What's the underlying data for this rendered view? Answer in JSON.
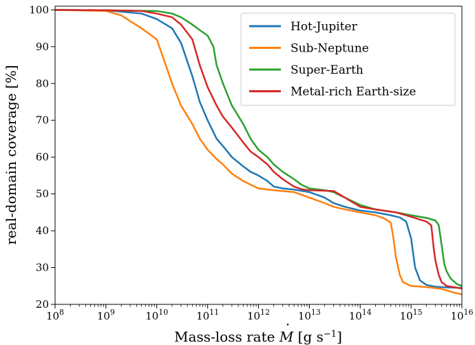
{
  "chart_data": {
    "type": "line",
    "xscale": "log",
    "xlim": [
      100000000.0,
      1e+16
    ],
    "ylim": [
      20,
      101
    ],
    "xlabel": "Mass-loss rate",
    "xlabel_symbol": "M",
    "xlabel_units_pre": "[g s",
    "xlabel_units_sup": "−1",
    "xlabel_units_post": "]",
    "ylabel": "real-domain coverage [%]",
    "x_ticks": [
      {
        "base": "10",
        "exp": "8",
        "value": 100000000.0
      },
      {
        "base": "10",
        "exp": "9",
        "value": 1000000000.0
      },
      {
        "base": "10",
        "exp": "10",
        "value": 10000000000.0
      },
      {
        "base": "10",
        "exp": "11",
        "value": 100000000000.0
      },
      {
        "base": "10",
        "exp": "12",
        "value": 1000000000000.0
      },
      {
        "base": "10",
        "exp": "13",
        "value": 10000000000000.0
      },
      {
        "base": "10",
        "exp": "14",
        "value": 100000000000000.0
      },
      {
        "base": "10",
        "exp": "15",
        "value": 1000000000000000.0
      },
      {
        "base": "10",
        "exp": "16",
        "value": 1e+16
      }
    ],
    "y_ticks": [
      "20",
      "30",
      "40",
      "50",
      "60",
      "70",
      "80",
      "90",
      "100"
    ],
    "grid": false,
    "legend_position": "top-right",
    "series": [
      {
        "name": "Hot-Jupiter",
        "color": "#1f77b4",
        "points": [
          [
            100000000.0,
            100
          ],
          [
            1000000000.0,
            99.9
          ],
          [
            5000000000.0,
            99
          ],
          [
            10000000000.0,
            97.5
          ],
          [
            20000000000.0,
            95
          ],
          [
            30000000000.0,
            91
          ],
          [
            50000000000.0,
            82
          ],
          [
            70000000000.0,
            75
          ],
          [
            100000000000.0,
            70
          ],
          [
            150000000000.0,
            65
          ],
          [
            200000000000.0,
            63
          ],
          [
            300000000000.0,
            60
          ],
          [
            500000000000.0,
            57.5
          ],
          [
            700000000000.0,
            56
          ],
          [
            1000000000000.0,
            55
          ],
          [
            1500000000000.0,
            53.5
          ],
          [
            2000000000000.0,
            52
          ],
          [
            3000000000000.0,
            51.5
          ],
          [
            5000000000000.0,
            51.2
          ],
          [
            10000000000000.0,
            50.5
          ],
          [
            20000000000000.0,
            49
          ],
          [
            30000000000000.0,
            47.5
          ],
          [
            50000000000000.0,
            46.5
          ],
          [
            70000000000000.0,
            46
          ],
          [
            100000000000000.0,
            45.5
          ],
          [
            200000000000000.0,
            45
          ],
          [
            400000000000000.0,
            44.2
          ],
          [
            600000000000000.0,
            43.6
          ],
          [
            800000000000000.0,
            42.5
          ],
          [
            1000000000000000.0,
            38
          ],
          [
            1200000000000000.0,
            30
          ],
          [
            1500000000000000.0,
            26.5
          ],
          [
            2000000000000000.0,
            25.3
          ],
          [
            3000000000000000.0,
            24.8
          ],
          [
            5000000000000000.0,
            24.6
          ],
          [
            1e+16,
            24.5
          ]
        ]
      },
      {
        "name": "Sub-Neptune",
        "color": "#ff7f0e",
        "points": [
          [
            100000000.0,
            100
          ],
          [
            1000000000.0,
            99.7
          ],
          [
            2000000000.0,
            98.5
          ],
          [
            5000000000.0,
            95
          ],
          [
            10000000000.0,
            92
          ],
          [
            15000000000.0,
            85
          ],
          [
            20000000000.0,
            80
          ],
          [
            30000000000.0,
            74
          ],
          [
            50000000000.0,
            69
          ],
          [
            70000000000.0,
            65
          ],
          [
            100000000000.0,
            62
          ],
          [
            150000000000.0,
            59.5
          ],
          [
            200000000000.0,
            58
          ],
          [
            300000000000.0,
            55.5
          ],
          [
            500000000000.0,
            53.5
          ],
          [
            700000000000.0,
            52.5
          ],
          [
            1000000000000.0,
            51.5
          ],
          [
            2000000000000.0,
            51
          ],
          [
            5000000000000.0,
            50.5
          ],
          [
            10000000000000.0,
            49
          ],
          [
            20000000000000.0,
            47.5
          ],
          [
            30000000000000.0,
            46.5
          ],
          [
            50000000000000.0,
            45.8
          ],
          [
            100000000000000.0,
            45
          ],
          [
            200000000000000.0,
            44.2
          ],
          [
            300000000000000.0,
            43.3
          ],
          [
            400000000000000.0,
            42.2
          ],
          [
            450000000000000.0,
            38
          ],
          [
            500000000000000.0,
            33
          ],
          [
            600000000000000.0,
            28
          ],
          [
            700000000000000.0,
            26
          ],
          [
            1000000000000000.0,
            25
          ],
          [
            2000000000000000.0,
            24.7
          ],
          [
            4000000000000000.0,
            24.2
          ],
          [
            7000000000000000.0,
            23.2
          ],
          [
            1e+16,
            22.7
          ]
        ]
      },
      {
        "name": "Super-Earth",
        "color": "#2ca02c",
        "points": [
          [
            100000000.0,
            100
          ],
          [
            1000000000.0,
            99.9
          ],
          [
            10000000000.0,
            99.7
          ],
          [
            20000000000.0,
            99
          ],
          [
            30000000000.0,
            98
          ],
          [
            50000000000.0,
            96
          ],
          [
            70000000000.0,
            94.5
          ],
          [
            100000000000.0,
            93
          ],
          [
            130000000000.0,
            90
          ],
          [
            150000000000.0,
            85
          ],
          [
            200000000000.0,
            80
          ],
          [
            300000000000.0,
            74
          ],
          [
            500000000000.0,
            69
          ],
          [
            700000000000.0,
            65
          ],
          [
            1000000000000.0,
            62
          ],
          [
            1500000000000.0,
            60
          ],
          [
            2000000000000.0,
            58
          ],
          [
            3000000000000.0,
            56
          ],
          [
            5000000000000.0,
            54
          ],
          [
            7000000000000.0,
            52.5
          ],
          [
            10000000000000.0,
            51.5
          ],
          [
            20000000000000.0,
            51
          ],
          [
            30000000000000.0,
            50.5
          ],
          [
            50000000000000.0,
            49
          ],
          [
            100000000000000.0,
            47
          ],
          [
            200000000000000.0,
            45.8
          ],
          [
            500000000000000.0,
            45
          ],
          [
            1000000000000000.0,
            44.2
          ],
          [
            2000000000000000.0,
            43.5
          ],
          [
            3000000000000000.0,
            42.8
          ],
          [
            3500000000000000.0,
            41.5
          ],
          [
            4000000000000000.0,
            36
          ],
          [
            4500000000000000.0,
            31
          ],
          [
            5000000000000000.0,
            29
          ],
          [
            6000000000000000.0,
            27
          ],
          [
            8000000000000000.0,
            25.5
          ],
          [
            1e+16,
            25
          ]
        ]
      },
      {
        "name": "Metal-rich Earth-size",
        "color": "#d62728",
        "points": [
          [
            100000000.0,
            100
          ],
          [
            1000000000.0,
            99.9
          ],
          [
            5000000000.0,
            99.7
          ],
          [
            10000000000.0,
            99
          ],
          [
            20000000000.0,
            98
          ],
          [
            30000000000.0,
            96
          ],
          [
            50000000000.0,
            92
          ],
          [
            70000000000.0,
            85
          ],
          [
            100000000000.0,
            79
          ],
          [
            150000000000.0,
            74
          ],
          [
            200000000000.0,
            71
          ],
          [
            300000000000.0,
            68
          ],
          [
            500000000000.0,
            64
          ],
          [
            700000000000.0,
            61.5
          ],
          [
            1000000000000.0,
            60
          ],
          [
            1500000000000.0,
            58
          ],
          [
            2000000000000.0,
            56
          ],
          [
            3000000000000.0,
            54
          ],
          [
            5000000000000.0,
            52
          ],
          [
            7000000000000.0,
            51.3
          ],
          [
            10000000000000.0,
            51
          ],
          [
            30000000000000.0,
            50.8
          ],
          [
            50000000000000.0,
            49
          ],
          [
            100000000000000.0,
            46.5
          ],
          [
            200000000000000.0,
            45.8
          ],
          [
            500000000000000.0,
            45
          ],
          [
            1000000000000000.0,
            43.8
          ],
          [
            2000000000000000.0,
            42.5
          ],
          [
            2500000000000000.0,
            41.5
          ],
          [
            2800000000000000.0,
            35
          ],
          [
            3000000000000000.0,
            32
          ],
          [
            3500000000000000.0,
            28
          ],
          [
            4000000000000000.0,
            26
          ],
          [
            5000000000000000.0,
            25
          ],
          [
            1e+16,
            24.3
          ]
        ]
      }
    ]
  }
}
